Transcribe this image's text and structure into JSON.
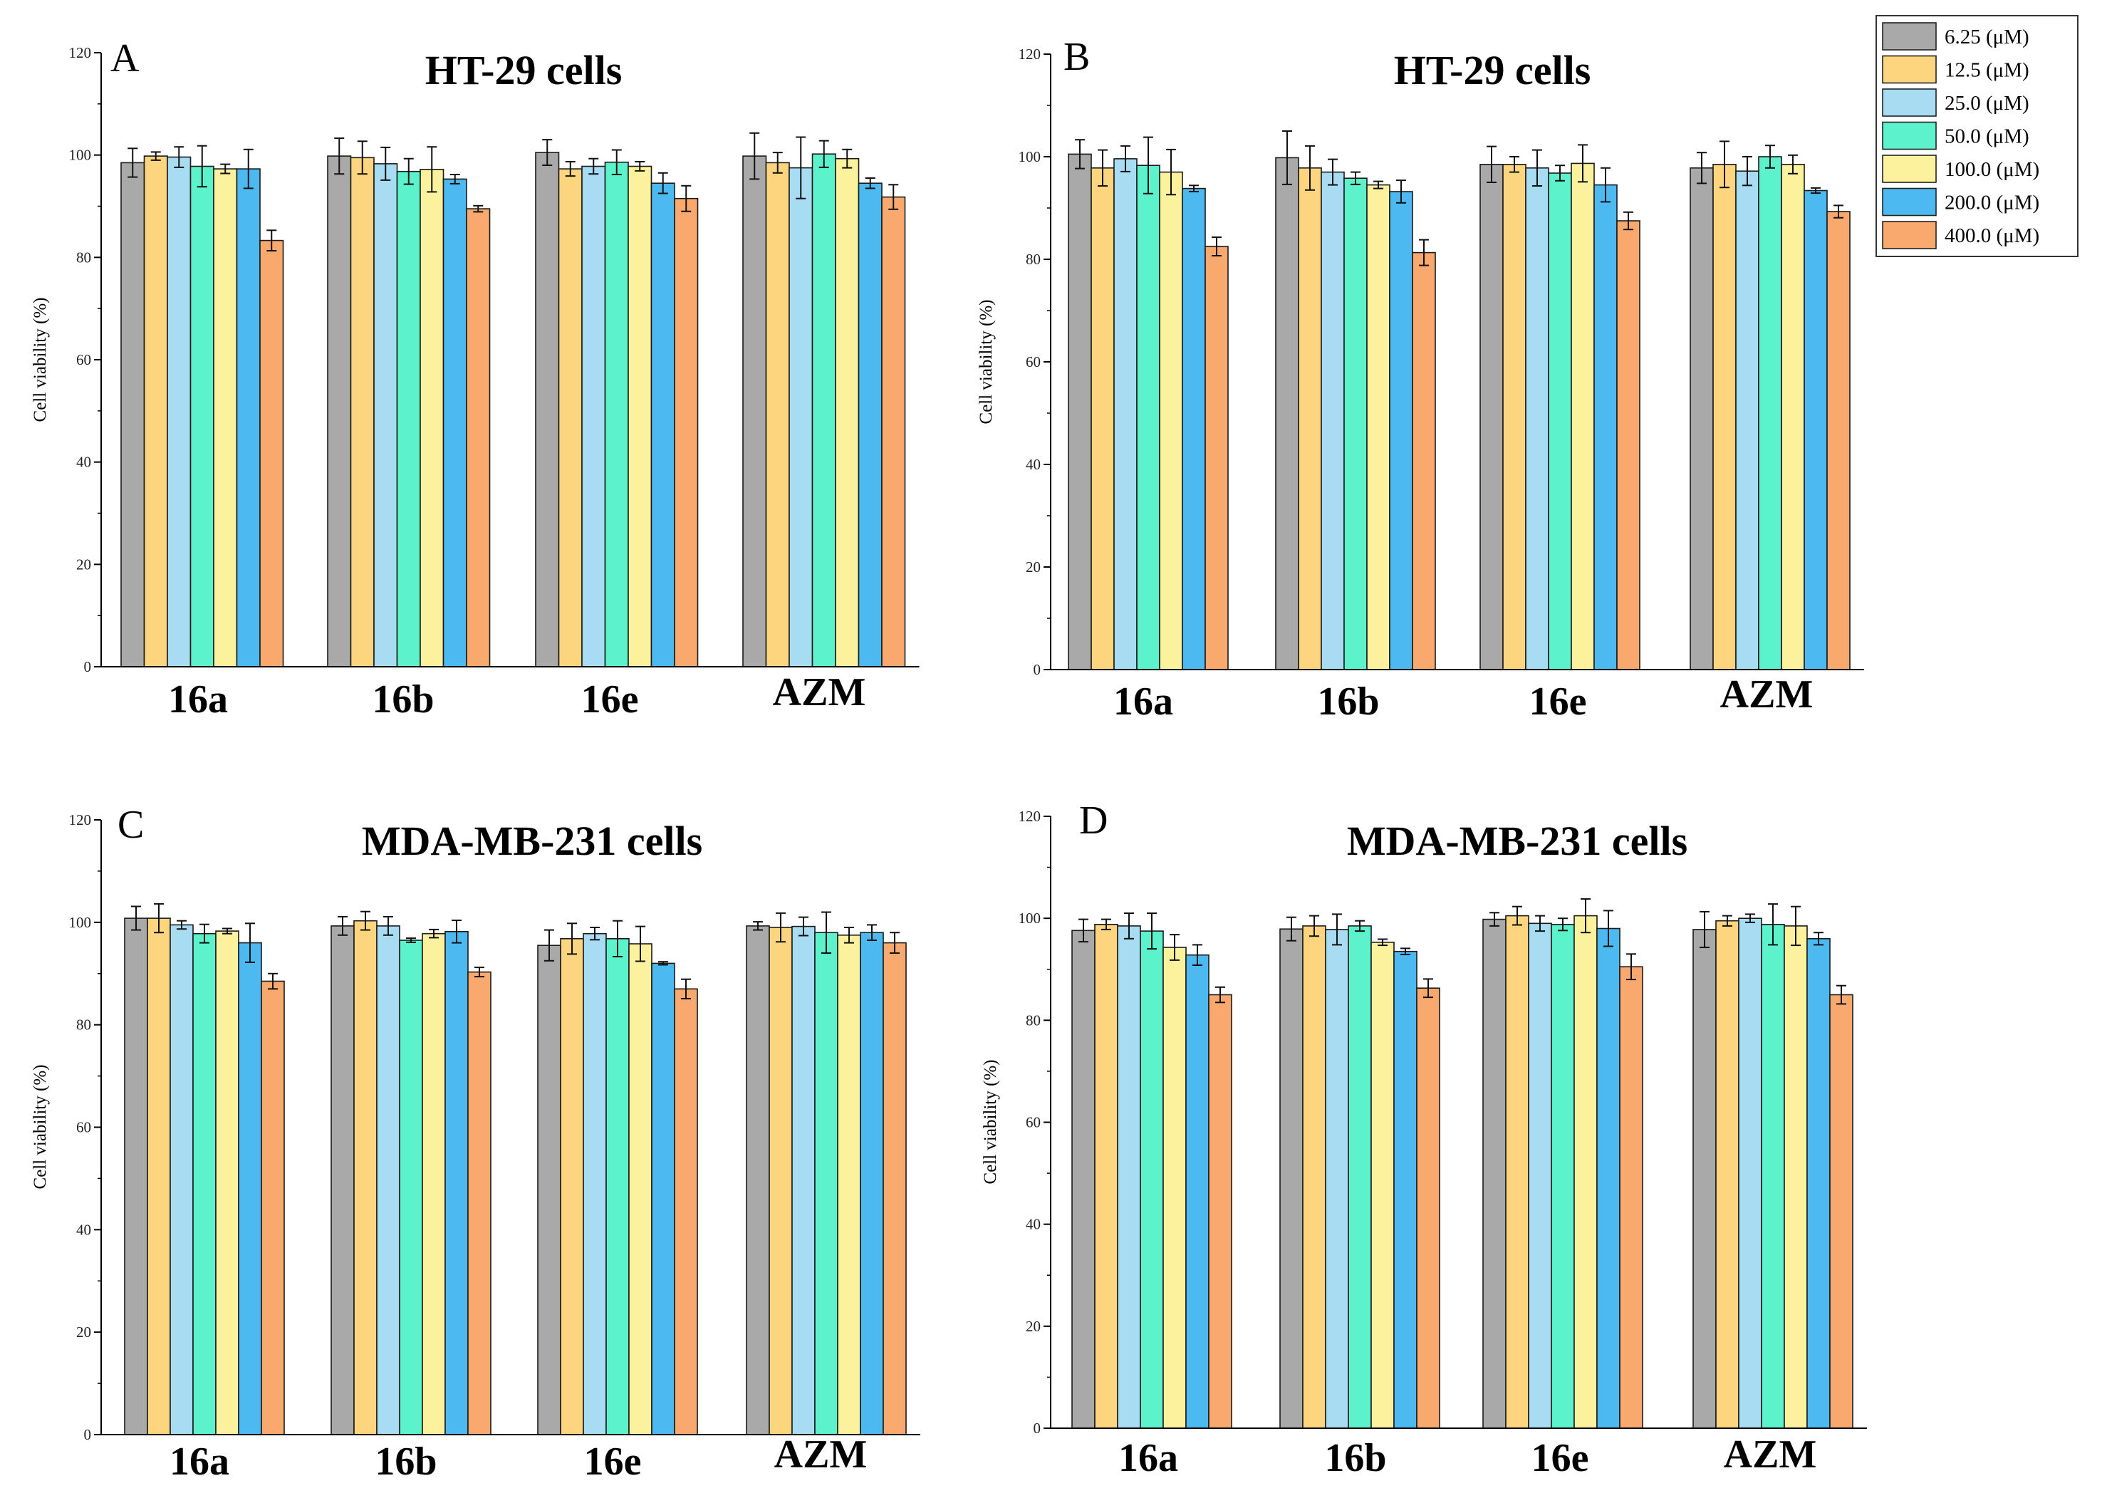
{
  "legend": {
    "items": [
      {
        "label": "6.25 (μM)",
        "color": "#a9a9a9"
      },
      {
        "label": "12.5 (μM)",
        "color": "#fdd57e"
      },
      {
        "label": "25.0 (μM)",
        "color": "#a8dcf2"
      },
      {
        "label": "50.0 (μM)",
        "color": "#5cf2cc"
      },
      {
        "label": "100.0 (μM)",
        "color": "#fcf19c"
      },
      {
        "label": "200.0 (μM)",
        "color": "#4cbaf0"
      },
      {
        "label": "400.0 (μM)",
        "color": "#f9a96e"
      }
    ]
  },
  "chart_data": [
    {
      "type": "bar",
      "panel": "A",
      "title": "HT-29 cells",
      "ylabel": "Cell viability (%)",
      "ylim": [
        0,
        120
      ],
      "yticks": [
        0,
        20,
        40,
        60,
        80,
        100,
        120
      ],
      "categories": [
        "16a",
        "16b",
        "16e",
        "AZM"
      ],
      "series": [
        {
          "name": "6.25 (μM)",
          "values": [
            98.5,
            99.8,
            100.5,
            99.8
          ],
          "errors": [
            2.8,
            3.5,
            2.5,
            4.5
          ]
        },
        {
          "name": "12.5 (μM)",
          "values": [
            99.8,
            99.5,
            97.3,
            98.5
          ],
          "errors": [
            0.8,
            3.2,
            1.4,
            2.0
          ]
        },
        {
          "name": "25.0 (μM)",
          "values": [
            99.6,
            98.3,
            97.8,
            97.5
          ],
          "errors": [
            2.0,
            3.2,
            1.5,
            6.0
          ]
        },
        {
          "name": "50.0 (μM)",
          "values": [
            97.8,
            96.8,
            98.6,
            100.2
          ],
          "errors": [
            4.0,
            2.5,
            2.4,
            2.6
          ]
        },
        {
          "name": "100.0 (μM)",
          "values": [
            97.3,
            97.2,
            97.8,
            99.3
          ],
          "errors": [
            0.9,
            4.4,
            0.9,
            1.8
          ]
        },
        {
          "name": "200.0 (μM)",
          "values": [
            97.3,
            95.3,
            94.5,
            94.5
          ],
          "errors": [
            3.8,
            0.9,
            2.0,
            1.0
          ]
        },
        {
          "name": "400.0 (μM)",
          "values": [
            83.3,
            89.5,
            91.5,
            91.8
          ],
          "errors": [
            2.0,
            0.6,
            2.5,
            2.4
          ]
        }
      ]
    },
    {
      "type": "bar",
      "panel": "B",
      "title": "HT-29 cells",
      "ylabel": "Cell viability (%)",
      "ylim": [
        0,
        120
      ],
      "yticks": [
        0,
        20,
        40,
        60,
        80,
        100,
        120
      ],
      "categories": [
        "16a",
        "16b",
        "16e",
        "AZM"
      ],
      "series": [
        {
          "name": "6.25 (μM)",
          "values": [
            100.5,
            99.8,
            98.5,
            97.8
          ],
          "errors": [
            2.8,
            5.2,
            3.5,
            3.0
          ]
        },
        {
          "name": "12.5 (μM)",
          "values": [
            97.8,
            97.8,
            98.5,
            98.5
          ],
          "errors": [
            3.5,
            4.3,
            1.5,
            4.5
          ]
        },
        {
          "name": "25.0 (μM)",
          "values": [
            99.6,
            97.0,
            97.8,
            97.2
          ],
          "errors": [
            2.5,
            2.5,
            3.5,
            2.8
          ]
        },
        {
          "name": "50.0 (μM)",
          "values": [
            98.3,
            95.8,
            96.8,
            100.0
          ],
          "errors": [
            5.5,
            1.2,
            1.5,
            2.2
          ]
        },
        {
          "name": "100.0 (μM)",
          "values": [
            97.0,
            94.5,
            98.7,
            98.5
          ],
          "errors": [
            4.4,
            0.7,
            3.6,
            1.8
          ]
        },
        {
          "name": "200.0 (μM)",
          "values": [
            93.8,
            93.2,
            94.5,
            93.4
          ],
          "errors": [
            0.6,
            2.2,
            3.3,
            0.5
          ]
        },
        {
          "name": "400.0 (μM)",
          "values": [
            82.5,
            81.3,
            87.5,
            89.3
          ],
          "errors": [
            1.8,
            2.5,
            1.7,
            1.2
          ]
        }
      ]
    },
    {
      "type": "bar",
      "panel": "C",
      "title": "MDA-MB-231 cells",
      "ylabel": "Cell viability (%)",
      "ylim": [
        0,
        120
      ],
      "yticks": [
        0,
        20,
        40,
        60,
        80,
        100,
        120
      ],
      "categories": [
        "16a",
        "16b",
        "16e",
        "AZM"
      ],
      "series": [
        {
          "name": "6.25 (μM)",
          "values": [
            100.8,
            99.3,
            95.5,
            99.3
          ],
          "errors": [
            2.3,
            1.8,
            3.0,
            0.8
          ]
        },
        {
          "name": "12.5 (μM)",
          "values": [
            100.8,
            100.3,
            96.8,
            99.0
          ],
          "errors": [
            2.8,
            1.8,
            3.0,
            2.8
          ]
        },
        {
          "name": "25.0 (μM)",
          "values": [
            99.5,
            99.3,
            97.8,
            99.2
          ],
          "errors": [
            0.8,
            1.8,
            1.2,
            1.8
          ]
        },
        {
          "name": "50.0 (μM)",
          "values": [
            97.8,
            96.5,
            96.8,
            98.0
          ],
          "errors": [
            1.8,
            0.4,
            3.5,
            4.0
          ]
        },
        {
          "name": "100.0 (μM)",
          "values": [
            98.3,
            97.8,
            95.8,
            97.5
          ],
          "errors": [
            0.5,
            0.8,
            3.4,
            1.5
          ]
        },
        {
          "name": "200.0 (μM)",
          "values": [
            96.0,
            98.2,
            92.0,
            98.0
          ],
          "errors": [
            3.8,
            2.2,
            0.3,
            1.5
          ]
        },
        {
          "name": "400.0 (μM)",
          "values": [
            88.5,
            90.3,
            87.0,
            96.0
          ],
          "errors": [
            1.5,
            0.9,
            1.9,
            2.0
          ]
        }
      ]
    },
    {
      "type": "bar",
      "panel": "D",
      "title": "MDA-MB-231 cells",
      "ylabel": "Cell viability (%)",
      "ylim": [
        0,
        120
      ],
      "yticks": [
        0,
        20,
        40,
        60,
        80,
        100,
        120
      ],
      "categories": [
        "16a",
        "16b",
        "16e",
        "AZM"
      ],
      "series": [
        {
          "name": "6.25 (μM)",
          "values": [
            97.6,
            97.9,
            99.8,
            97.8
          ],
          "errors": [
            2.2,
            2.3,
            1.3,
            3.5
          ]
        },
        {
          "name": "12.5 (μM)",
          "values": [
            98.8,
            98.5,
            100.5,
            99.5
          ],
          "errors": [
            1.0,
            2.0,
            1.8,
            1.0
          ]
        },
        {
          "name": "25.0 (μM)",
          "values": [
            98.5,
            97.8,
            99.0,
            100.0
          ],
          "errors": [
            2.5,
            3.0,
            1.5,
            0.8
          ]
        },
        {
          "name": "50.0 (μM)",
          "values": [
            97.5,
            98.5,
            98.8,
            98.8
          ],
          "errors": [
            3.5,
            1.0,
            1.2,
            4.0
          ]
        },
        {
          "name": "100.0 (μM)",
          "values": [
            94.3,
            95.3,
            100.5,
            98.5
          ],
          "errors": [
            2.5,
            0.6,
            3.3,
            3.8
          ]
        },
        {
          "name": "200.0 (μM)",
          "values": [
            92.8,
            93.5,
            98.0,
            96.0
          ],
          "errors": [
            2.0,
            0.6,
            3.5,
            1.2
          ]
        },
        {
          "name": "400.0 (μM)",
          "values": [
            85.0,
            86.3,
            90.5,
            85.0
          ],
          "errors": [
            1.5,
            1.8,
            2.5,
            1.8
          ]
        }
      ]
    }
  ]
}
